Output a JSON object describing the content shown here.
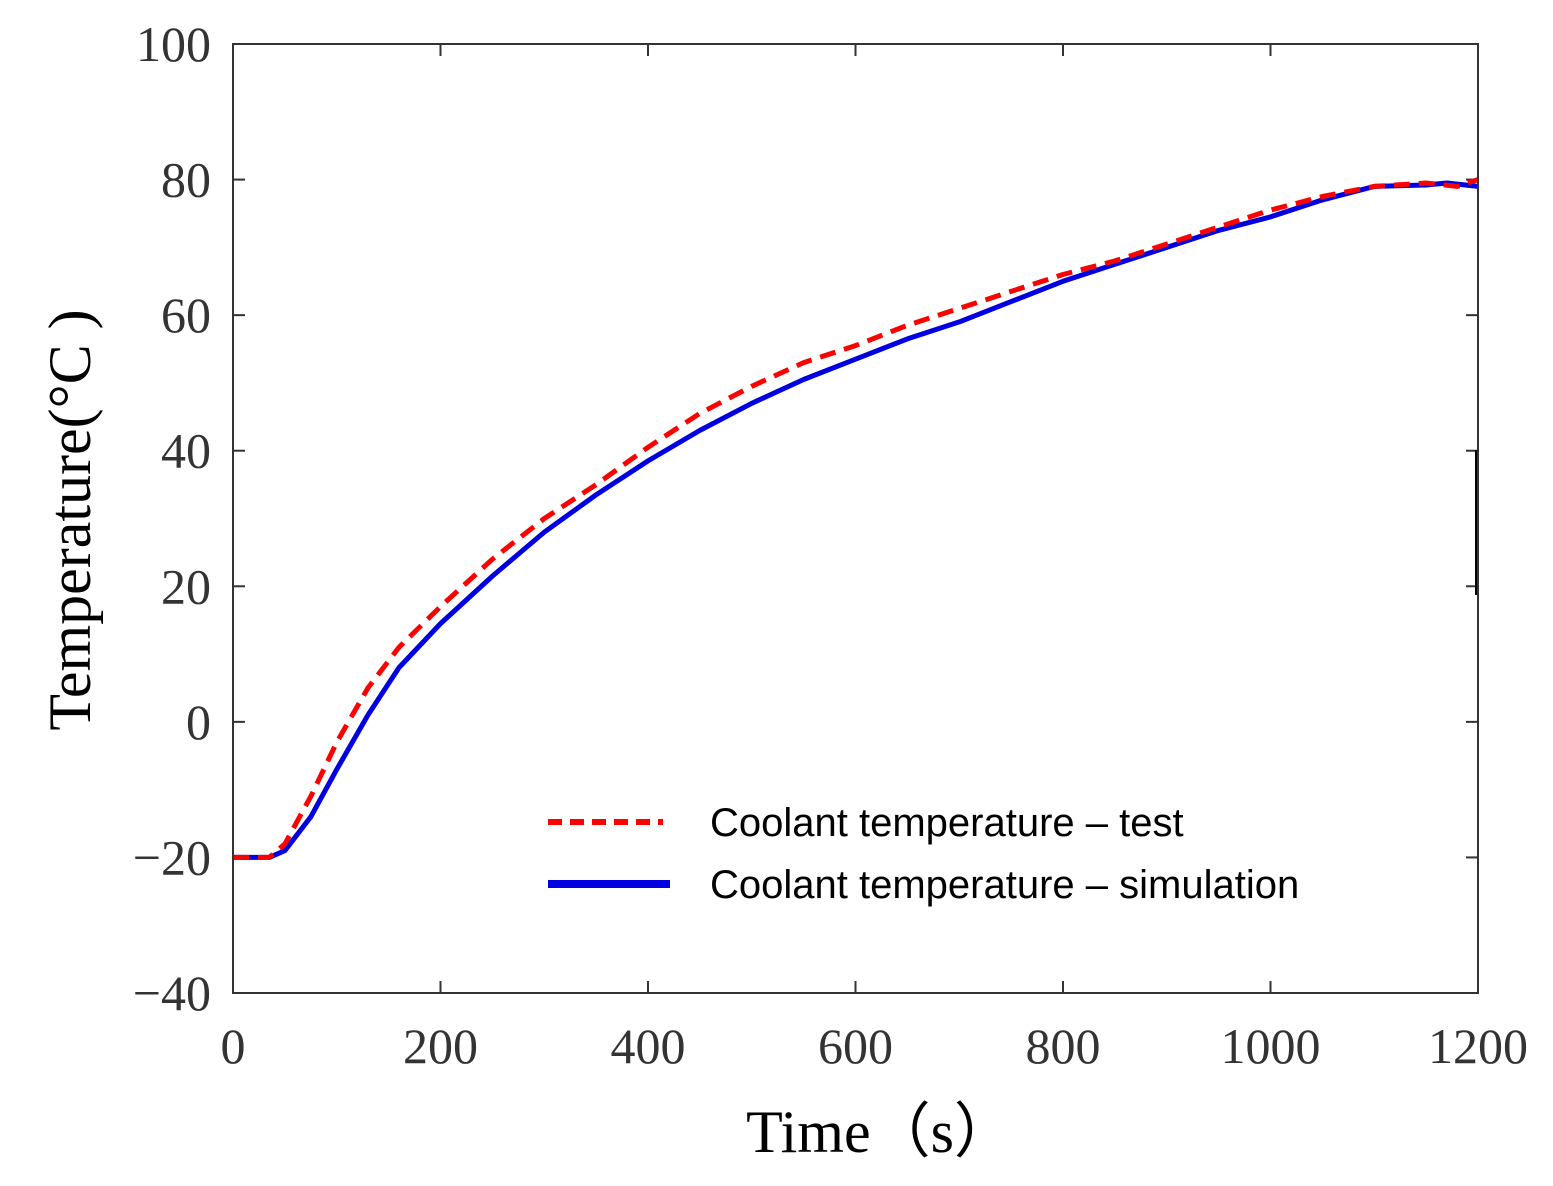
{
  "chart_data": {
    "type": "line",
    "xlabel": "Time（s）",
    "ylabel": "Temperature(°C )",
    "xlim": [
      0,
      1200
    ],
    "ylim": [
      -40,
      100
    ],
    "xticks": [
      "0",
      "200",
      "400",
      "600",
      "800",
      "1000",
      "1200"
    ],
    "yticks": [
      "100",
      "80",
      "60",
      "40",
      "20",
      "0",
      "−20",
      "−40"
    ],
    "grid": false,
    "legend_position": "lower-right",
    "series": [
      {
        "name": "Coolant temperature – test",
        "style": "dashed",
        "color": "#ff0000",
        "x": [
          0,
          35,
          50,
          75,
          100,
          130,
          160,
          200,
          250,
          300,
          350,
          400,
          450,
          500,
          550,
          600,
          650,
          700,
          750,
          800,
          850,
          900,
          950,
          1000,
          1050,
          1100,
          1150,
          1180,
          1200
        ],
        "y": [
          -20,
          -20,
          -18,
          -11,
          -3,
          5,
          11,
          17,
          24,
          30,
          35,
          40.5,
          45.5,
          49.5,
          53,
          55.5,
          58.5,
          61,
          63.5,
          66,
          68,
          70.5,
          73,
          75.5,
          77.5,
          79,
          79.5,
          79,
          80
        ]
      },
      {
        "name": "Coolant temperature – simulation",
        "style": "solid",
        "color": "#0000e0",
        "x": [
          0,
          35,
          50,
          75,
          100,
          130,
          160,
          200,
          250,
          300,
          350,
          400,
          450,
          500,
          550,
          600,
          650,
          700,
          750,
          800,
          850,
          900,
          950,
          1000,
          1050,
          1100,
          1150,
          1170,
          1200
        ],
        "y": [
          -20,
          -20,
          -19,
          -14,
          -7,
          1,
          8,
          14.5,
          21.5,
          28,
          33.5,
          38.5,
          43,
          47,
          50.5,
          53.5,
          56.5,
          59,
          62,
          65,
          67.5,
          70,
          72.5,
          74.5,
          77,
          79,
          79.2,
          79.5,
          79
        ]
      }
    ]
  }
}
